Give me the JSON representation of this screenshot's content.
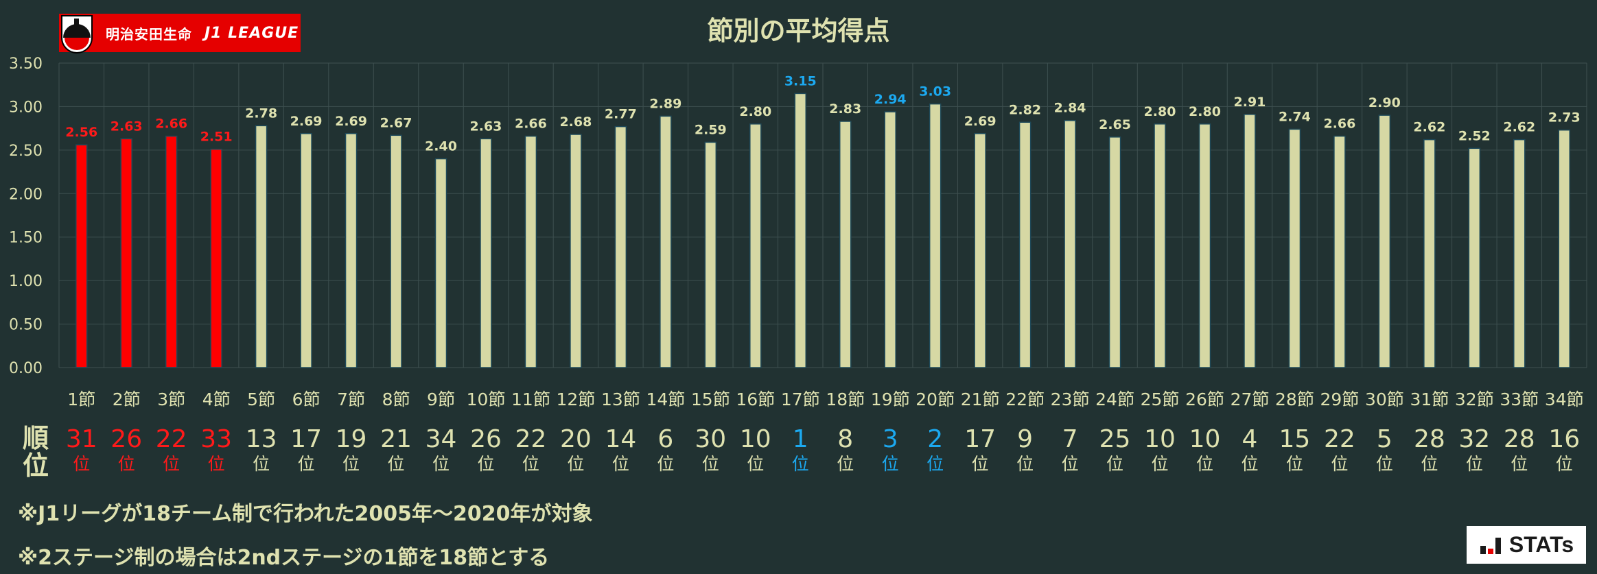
{
  "logo": {
    "sponsor": "明治安田生命",
    "league": "J1 LEAGUE"
  },
  "notes": [
    "※J1リーグが18チーム制で行われた2005年～2020年が対象",
    "※2ステージ制の場合は2ndステージの1節を18節とする"
  ],
  "stats_logo": "STATs",
  "rank_label": [
    "順",
    "位"
  ],
  "rank_suffix": "位",
  "colors": {
    "background": "#213232",
    "bar_default": "#d6d8a4",
    "bar_highlight_red": "#ff0000",
    "label_red": "#ff1a1a",
    "label_blue": "#1ca9f0",
    "label_default": "#dfe2b0",
    "grid": "#3e5050"
  },
  "chart_data": {
    "type": "bar",
    "title": "節別の平均得点",
    "ylim": [
      0,
      3.5
    ],
    "yticks": [
      "0.00",
      "0.50",
      "1.00",
      "1.50",
      "2.00",
      "2.50",
      "3.00",
      "3.50"
    ],
    "grid": true,
    "categories": [
      "1節",
      "2節",
      "3節",
      "4節",
      "5節",
      "6節",
      "7節",
      "8節",
      "9節",
      "10節",
      "11節",
      "12節",
      "13節",
      "14節",
      "15節",
      "16節",
      "17節",
      "18節",
      "19節",
      "20節",
      "21節",
      "22節",
      "23節",
      "24節",
      "25節",
      "26節",
      "27節",
      "28節",
      "29節",
      "30節",
      "31節",
      "32節",
      "33節",
      "34節"
    ],
    "values": [
      2.56,
      2.63,
      2.66,
      2.51,
      2.78,
      2.69,
      2.69,
      2.67,
      2.4,
      2.63,
      2.66,
      2.68,
      2.77,
      2.89,
      2.59,
      2.8,
      3.15,
      2.83,
      2.94,
      3.03,
      2.69,
      2.82,
      2.84,
      2.65,
      2.8,
      2.8,
      2.91,
      2.74,
      2.66,
      2.9,
      2.62,
      2.52,
      2.62,
      2.73
    ],
    "labels": [
      "2.56",
      "2.63",
      "2.66",
      "2.51",
      "2.78",
      "2.69",
      "2.69",
      "2.67",
      "2.40",
      "2.63",
      "2.66",
      "2.68",
      "2.77",
      "2.89",
      "2.59",
      "2.80",
      "3.15",
      "2.83",
      "2.94",
      "3.03",
      "2.69",
      "2.82",
      "2.84",
      "2.65",
      "2.80",
      "2.80",
      "2.91",
      "2.74",
      "2.66",
      "2.90",
      "2.62",
      "2.52",
      "2.62",
      "2.73"
    ],
    "ranks": [
      31,
      26,
      22,
      33,
      13,
      17,
      19,
      21,
      34,
      26,
      22,
      20,
      14,
      6,
      30,
      10,
      1,
      8,
      3,
      2,
      17,
      9,
      7,
      25,
      10,
      10,
      4,
      15,
      22,
      5,
      28,
      32,
      28,
      16
    ],
    "highlight": [
      "red",
      "red",
      "red",
      "red",
      "",
      "",
      "",
      "",
      "",
      "",
      "",
      "",
      "",
      "",
      "",
      "",
      "blue",
      "",
      "blue",
      "blue",
      "",
      "",
      "",
      "",
      "",
      "",
      "",
      "",
      "",
      "",
      "",
      "",
      "",
      ""
    ]
  }
}
